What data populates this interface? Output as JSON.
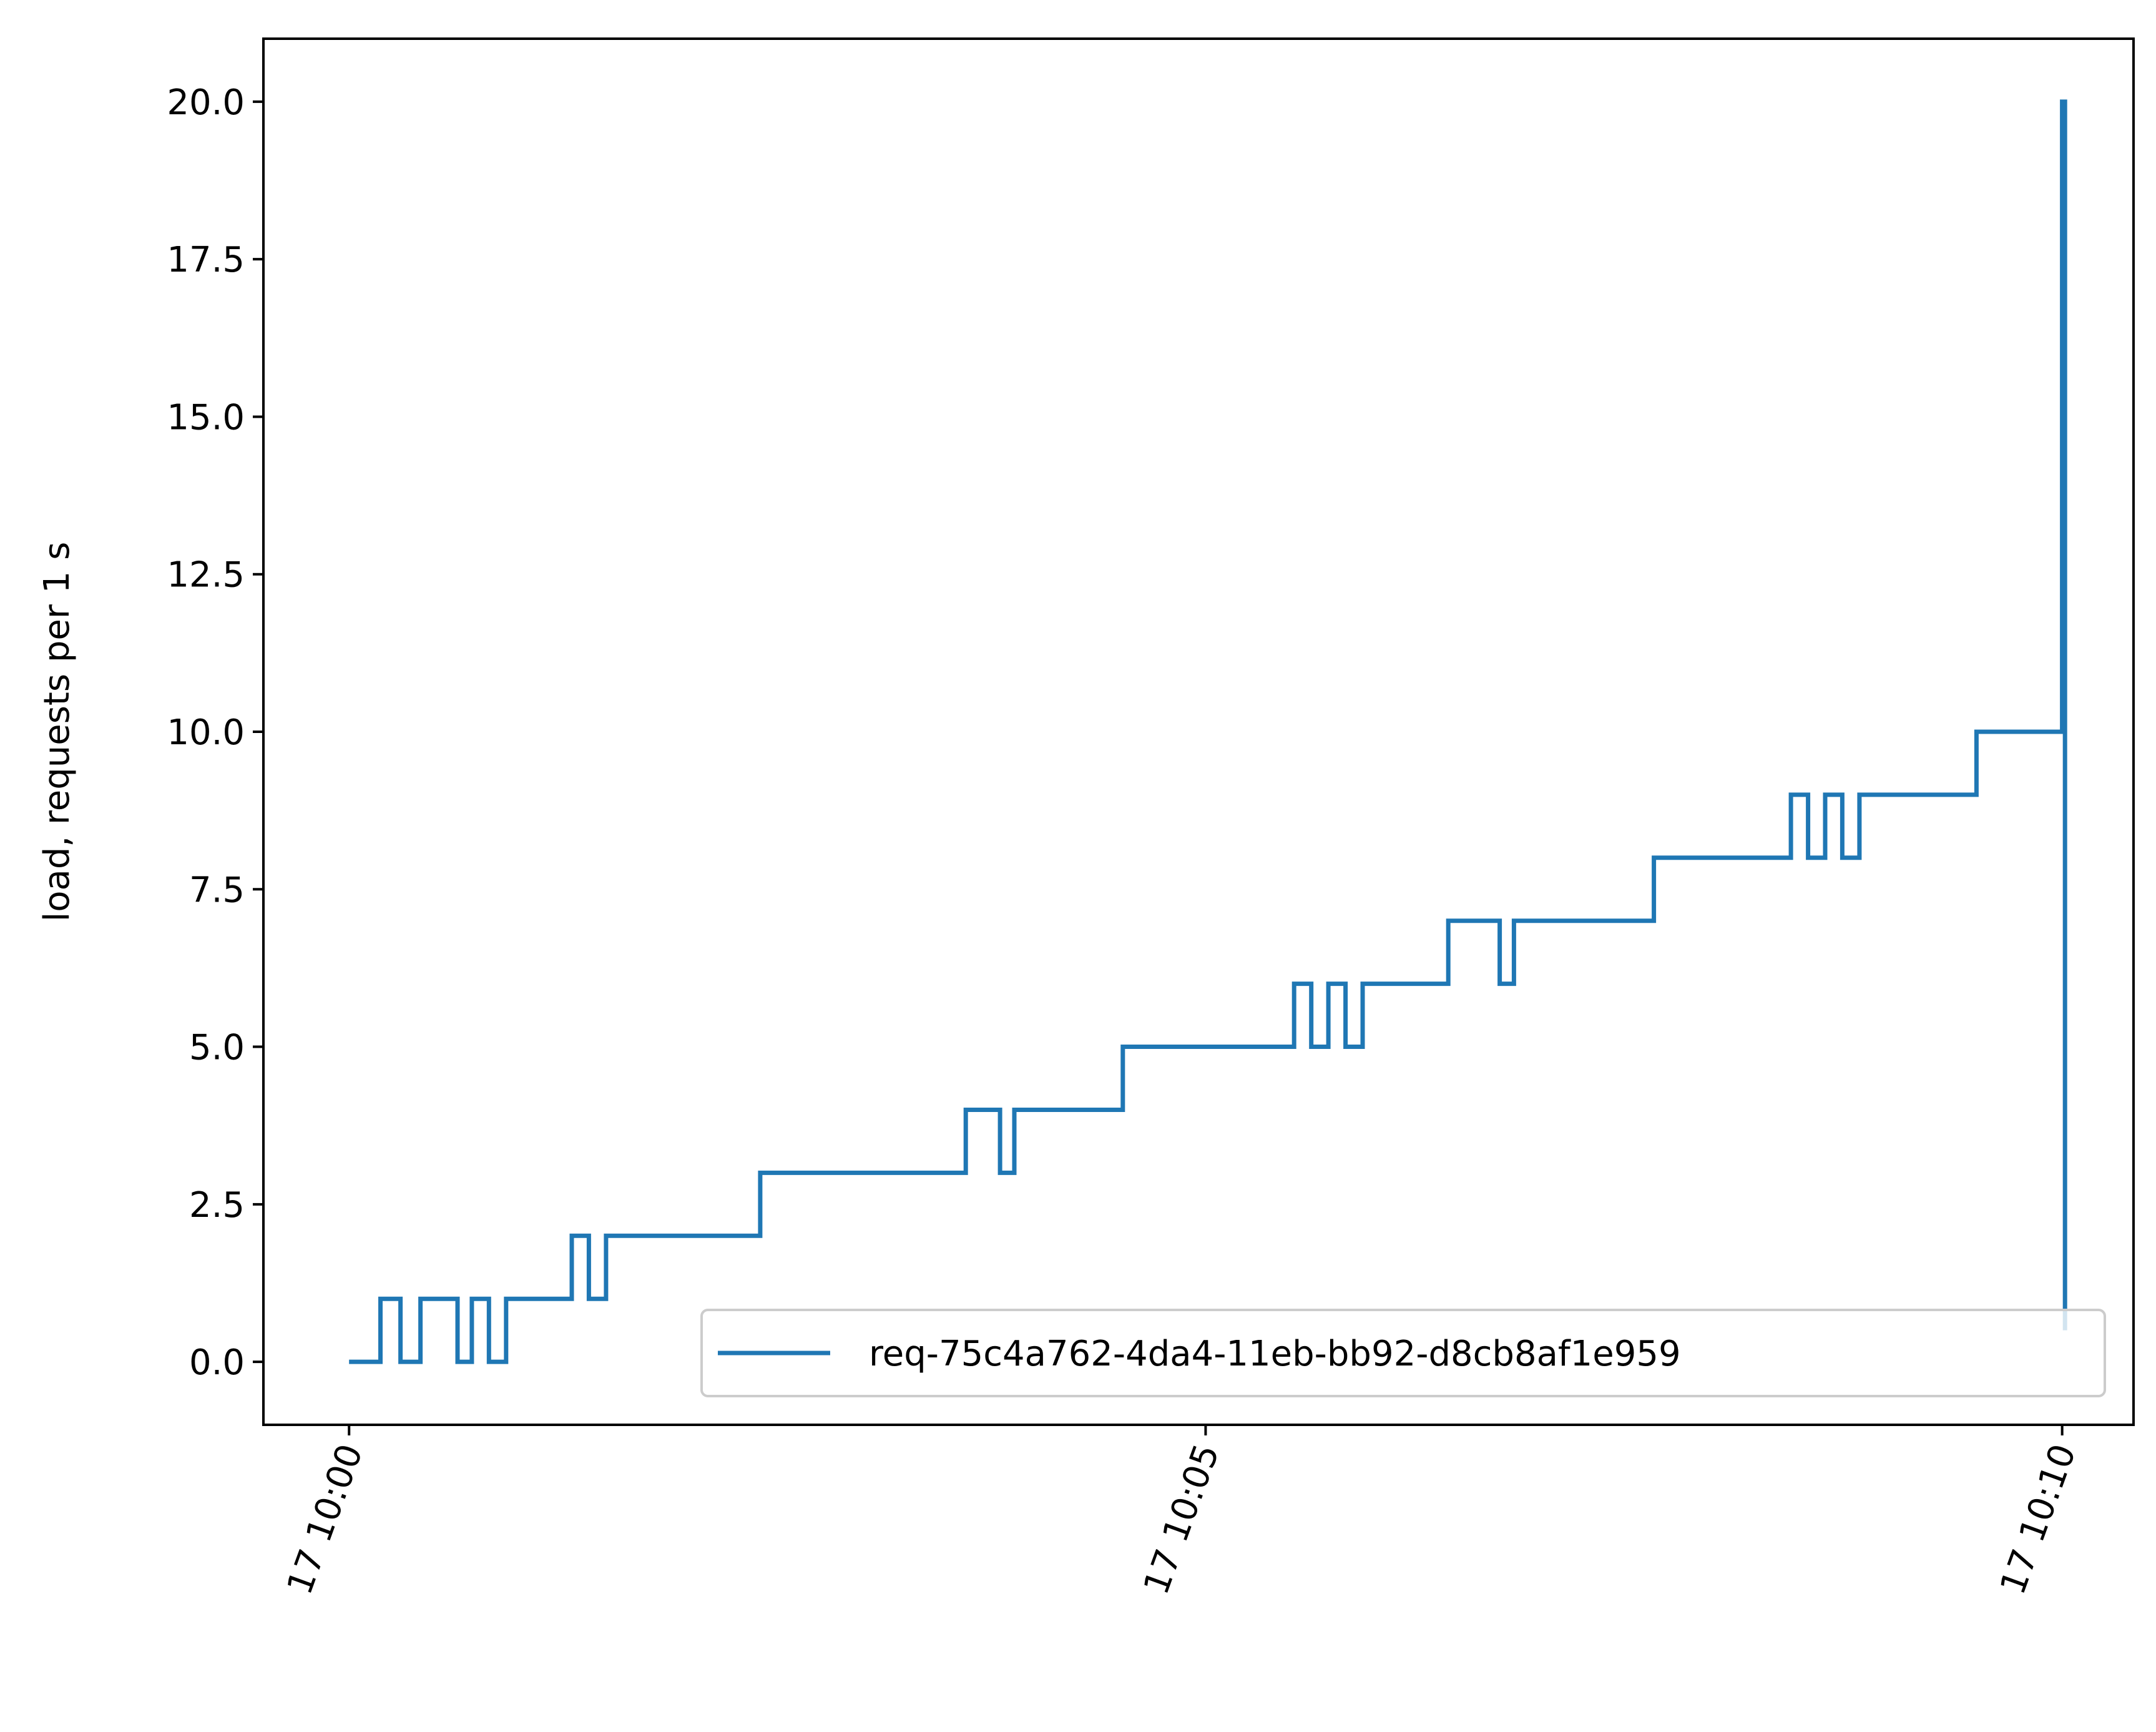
{
  "chart_data": {
    "type": "line",
    "title": "",
    "xlabel": "",
    "ylabel": "load, requests per 1 s",
    "x_unit": "time (hh:mm:ss), day 17",
    "xlim": [
      "09:59:30",
      "10:10:25"
    ],
    "ylim": [
      -1,
      21
    ],
    "x_ticks": [
      "10:00",
      "10:05",
      "10:10"
    ],
    "x_tick_labels": [
      "17 10:00",
      "17 10:05",
      "17 10:10"
    ],
    "y_ticks": [
      0.0,
      2.5,
      5.0,
      7.5,
      10.0,
      12.5,
      15.0,
      17.5,
      20.0
    ],
    "y_tick_labels": [
      "0.0",
      "2.5",
      "5.0",
      "7.5",
      "10.0",
      "12.5",
      "15.0",
      "17.5",
      "20.0"
    ],
    "grid": false,
    "legend_position": "lower-right",
    "series": [
      {
        "name": "req-75c4a762-4da4-11eb-bb92-d8cb8af1e959",
        "color": "#1f77b4",
        "step": "post",
        "points": [
          [
            "10:00:00",
            0
          ],
          [
            "10:00:11",
            1
          ],
          [
            "10:00:18",
            0
          ],
          [
            "10:00:25",
            1
          ],
          [
            "10:00:38",
            0
          ],
          [
            "10:00:43",
            1
          ],
          [
            "10:00:49",
            0
          ],
          [
            "10:00:55",
            1
          ],
          [
            "10:01:18",
            2
          ],
          [
            "10:01:24",
            1
          ],
          [
            "10:01:30",
            2
          ],
          [
            "10:02:24",
            3
          ],
          [
            "10:03:36",
            4
          ],
          [
            "10:03:48",
            3
          ],
          [
            "10:03:53",
            4
          ],
          [
            "10:04:31",
            5
          ],
          [
            "10:05:31",
            6
          ],
          [
            "10:05:37",
            5
          ],
          [
            "10:05:43",
            6
          ],
          [
            "10:05:49",
            5
          ],
          [
            "10:05:55",
            6
          ],
          [
            "10:06:25",
            7
          ],
          [
            "10:06:43",
            6
          ],
          [
            "10:06:48",
            7
          ],
          [
            "10:07:37",
            8
          ],
          [
            "10:08:25",
            9
          ],
          [
            "10:08:31",
            8
          ],
          [
            "10:08:37",
            9
          ],
          [
            "10:08:43",
            8
          ],
          [
            "10:08:49",
            9
          ],
          [
            "10:09:30",
            10
          ],
          [
            "10:10:00",
            20
          ],
          [
            "10:10:01",
            0.5
          ]
        ]
      }
    ]
  }
}
